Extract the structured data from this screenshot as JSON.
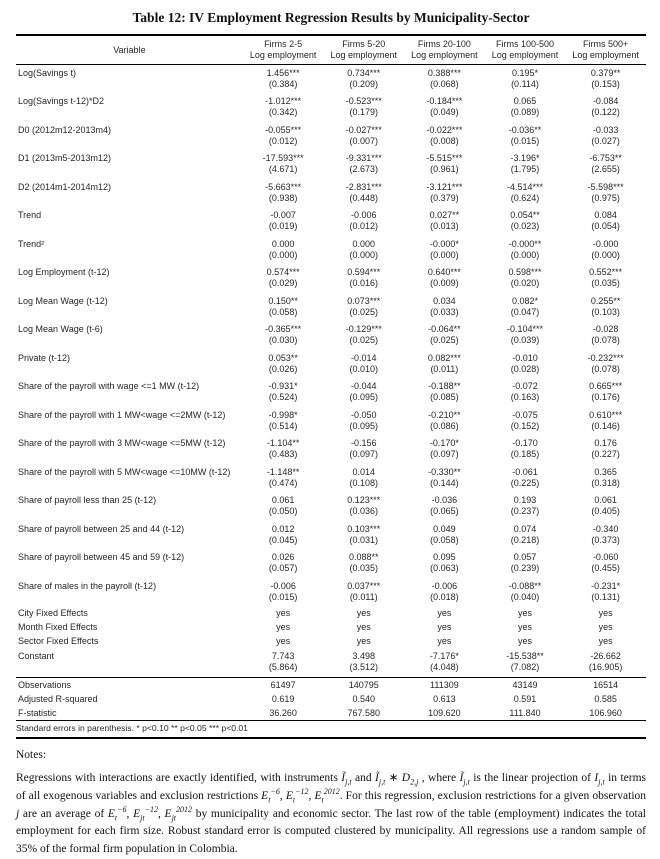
{
  "title": "Table 12: IV Employment Regression Results by Municipality-Sector",
  "table": {
    "variable_header": "Variable",
    "columns": [
      {
        "line1": "Firms 2-5",
        "line2": "Log employment"
      },
      {
        "line1": "Firms 5-20",
        "line2": "Log employment"
      },
      {
        "line1": "Firms 20-100",
        "line2": "Log employment"
      },
      {
        "line1": "Firms 100-500",
        "line2": "Log employment"
      },
      {
        "line1": "Firms 500+",
        "line2": "Log employment"
      }
    ],
    "body_rows": [
      {
        "variable": "Log(Savings t)",
        "values": [
          "1.456***",
          "0.734***",
          "0.388***",
          "0.195*",
          "0.379**"
        ],
        "ses": [
          "(0.384)",
          "(0.209)",
          "(0.068)",
          "(0.114)",
          "(0.153)"
        ]
      },
      {
        "variable": "Log(Savings t-12)*D2",
        "values": [
          "-1.012***",
          "-0.523***",
          "-0.184***",
          "0.065",
          "-0.084"
        ],
        "ses": [
          "(0.342)",
          "(0.179)",
          "(0.049)",
          "(0.089)",
          "(0.122)"
        ]
      },
      {
        "variable": "D0 (2012m12-2013m4)",
        "values": [
          "-0.055***",
          "-0.027***",
          "-0.022***",
          "-0.036**",
          "-0.033"
        ],
        "ses": [
          "(0.012)",
          "(0.007)",
          "(0.008)",
          "(0.015)",
          "(0.027)"
        ]
      },
      {
        "variable": "D1 (2013m5-2013m12)",
        "values": [
          "-17.593***",
          "-9.331***",
          "-5.515***",
          "-3.196*",
          "-6.753**"
        ],
        "ses": [
          "(4.671)",
          "(2.673)",
          "(0.961)",
          "(1.795)",
          "(2.655)"
        ]
      },
      {
        "variable": "D2 (2014m1-2014m12)",
        "values": [
          "-5.663***",
          "-2.831***",
          "-3.121***",
          "-4.514***",
          "-5.598***"
        ],
        "ses": [
          "(0.938)",
          "(0.448)",
          "(0.379)",
          "(0.624)",
          "(0.975)"
        ]
      },
      {
        "variable": "Trend",
        "values": [
          "-0.007",
          "-0.006",
          "0.027**",
          "0.054**",
          "0.084"
        ],
        "ses": [
          "(0.019)",
          "(0.012)",
          "(0.013)",
          "(0.023)",
          "(0.054)"
        ]
      },
      {
        "variable": "Trend²",
        "values": [
          "0.000",
          "0.000",
          "-0.000*",
          "-0.000**",
          "-0.000"
        ],
        "ses": [
          "(0.000)",
          "(0.000)",
          "(0.000)",
          "(0.000)",
          "(0.000)"
        ]
      },
      {
        "variable": "Log Employment (t-12)",
        "values": [
          "0.574***",
          "0.594***",
          "0.640***",
          "0.598***",
          "0.552***"
        ],
        "ses": [
          "(0.029)",
          "(0.016)",
          "(0.009)",
          "(0.020)",
          "(0.035)"
        ]
      },
      {
        "variable": "Log Mean Wage (t-12)",
        "values": [
          "0.150**",
          "0.073***",
          "0.034",
          "0.082*",
          "0.255**"
        ],
        "ses": [
          "(0.058)",
          "(0.025)",
          "(0.033)",
          "(0.047)",
          "(0.103)"
        ]
      },
      {
        "variable": "Log Mean Wage (t-6)",
        "values": [
          "-0.365***",
          "-0.129***",
          "-0.064**",
          "-0.104***",
          "-0.028"
        ],
        "ses": [
          "(0.030)",
          "(0.025)",
          "(0.025)",
          "(0.039)",
          "(0.078)"
        ]
      },
      {
        "variable": "Private (t-12)",
        "values": [
          "0.053**",
          "-0.014",
          "0.082***",
          "-0.010",
          "-0.232***"
        ],
        "ses": [
          "(0.026)",
          "(0.010)",
          "(0.011)",
          "(0.028)",
          "(0.078)"
        ]
      },
      {
        "variable": "Share of the payroll with wage <=1 MW (t-12)",
        "values": [
          "-0.931*",
          "-0.044",
          "-0.188**",
          "-0.072",
          "0.665***"
        ],
        "ses": [
          "(0.524)",
          "(0.095)",
          "(0.085)",
          "(0.163)",
          "(0.176)"
        ]
      },
      {
        "variable": "Share of the payroll with 1 MW<wage <=2MW (t-12)",
        "values": [
          "-0.998*",
          "-0.050",
          "-0.210**",
          "-0.075",
          "0.610***"
        ],
        "ses": [
          "(0.514)",
          "(0.095)",
          "(0.086)",
          "(0.152)",
          "(0.146)"
        ]
      },
      {
        "variable": "Share of the payroll with 3 MW<wage <=5MW (t-12)",
        "values": [
          "-1.104**",
          "-0.156",
          "-0.170*",
          "-0.170",
          "0.176"
        ],
        "ses": [
          "(0.483)",
          "(0.097)",
          "(0.097)",
          "(0.185)",
          "(0.227)"
        ]
      },
      {
        "variable": "Share of the payroll with 5 MW<wage <=10MW (t-12)",
        "values": [
          "-1.148**",
          "0.014",
          "-0.330**",
          "-0.061",
          "0.365"
        ],
        "ses": [
          "(0.474)",
          "(0.108)",
          "(0.144)",
          "(0.225)",
          "(0.318)"
        ]
      },
      {
        "variable": "Share of payroll less than 25 (t-12)",
        "values": [
          "0.061",
          "0.123***",
          "-0.036",
          "0.193",
          "0.061"
        ],
        "ses": [
          "(0.050)",
          "(0.036)",
          "(0.065)",
          "(0.237)",
          "(0.405)"
        ]
      },
      {
        "variable": "Share of payroll between 25 and 44 (t-12)",
        "values": [
          "0.012",
          "0.103***",
          "0.049",
          "0.074",
          "-0.340"
        ],
        "ses": [
          "(0.045)",
          "(0.031)",
          "(0.058)",
          "(0.218)",
          "(0.373)"
        ]
      },
      {
        "variable": "Share of payroll between 45 and 59 (t-12)",
        "values": [
          "0.026",
          "0.088**",
          "0.095",
          "0.057",
          "-0.060"
        ],
        "ses": [
          "(0.057)",
          "(0.035)",
          "(0.063)",
          "(0.239)",
          "(0.455)"
        ]
      },
      {
        "variable": "Share of males in the payroll (t-12)",
        "values": [
          "-0.006",
          "0.037***",
          "-0.006",
          "-0.088**",
          "-0.231*"
        ],
        "ses": [
          "(0.015)",
          "(0.011)",
          "(0.018)",
          "(0.040)",
          "(0.131)"
        ]
      },
      {
        "variable": "City Fixed Effects",
        "values": [
          "yes",
          "yes",
          "yes",
          "yes",
          "yes"
        ]
      },
      {
        "variable": "Month Fixed Effects",
        "values": [
          "yes",
          "yes",
          "yes",
          "yes",
          "yes"
        ]
      },
      {
        "variable": "Sector Fixed Effects",
        "values": [
          "yes",
          "yes",
          "yes",
          "yes",
          "yes"
        ]
      },
      {
        "variable": "Constant",
        "values": [
          "7.743",
          "3.498",
          "-7.176*",
          "-15.538**",
          "-26.662"
        ],
        "ses": [
          "(5.864)",
          "(3.512)",
          "(4.048)",
          "(7.082)",
          "(16.905)"
        ]
      }
    ],
    "stats_rows": [
      {
        "variable": "Observations",
        "values": [
          "61497",
          "140795",
          "111309",
          "43149",
          "16514"
        ]
      },
      {
        "variable": "Adjusted R-squared",
        "values": [
          "0.619",
          "0.540",
          "0.613",
          "0.591",
          "0.585"
        ]
      },
      {
        "variable": "F-statistic",
        "values": [
          "36.260",
          "767.580",
          "109.620",
          "111.840",
          "106.960"
        ]
      }
    ],
    "footnote": "Standard errors in parenthesis.   * p<0.10  ** p<0.05  *** p<0.01"
  },
  "notes": {
    "heading": "Notes:",
    "tokens": [
      {
        "s": "n",
        "v": "Regressions with interactions are exactly identified, with instruments "
      },
      {
        "s": "i",
        "v": "Ĩ"
      },
      {
        "s": "sub",
        "v": "j,t"
      },
      {
        "s": "n",
        "v": " and "
      },
      {
        "s": "i",
        "v": "Ĩ"
      },
      {
        "s": "sub",
        "v": "j,t"
      },
      {
        "s": "n",
        "v": " ∗ "
      },
      {
        "s": "i",
        "v": "D"
      },
      {
        "s": "sub",
        "v": "2,j"
      },
      {
        "s": "n",
        "v": " , where "
      },
      {
        "s": "i",
        "v": "Ĩ"
      },
      {
        "s": "sub",
        "v": "j,t"
      },
      {
        "s": "n",
        "v": " is the linear projection of "
      },
      {
        "s": "i",
        "v": "I"
      },
      {
        "s": "sub",
        "v": "j,t"
      },
      {
        "s": "n",
        "v": " in terms of all exogenous variables and exclusion restrictions "
      },
      {
        "s": "i",
        "v": "E"
      },
      {
        "s": "sub",
        "v": "t"
      },
      {
        "s": "sup",
        "v": "−6"
      },
      {
        "s": "n",
        "v": ", "
      },
      {
        "s": "i",
        "v": "E"
      },
      {
        "s": "sub",
        "v": "t"
      },
      {
        "s": "sup",
        "v": "−12"
      },
      {
        "s": "n",
        "v": ", "
      },
      {
        "s": "i",
        "v": "E"
      },
      {
        "s": "sub",
        "v": "t"
      },
      {
        "s": "sup",
        "v": "2012"
      },
      {
        "s": "n",
        "v": ". For this regression, exclusion restrictions for a given observation "
      },
      {
        "s": "i",
        "v": "j"
      },
      {
        "s": "n",
        "v": " are an average of "
      },
      {
        "s": "i",
        "v": "E"
      },
      {
        "s": "sub",
        "v": "t"
      },
      {
        "s": "sup",
        "v": "−6"
      },
      {
        "s": "n",
        "v": ", "
      },
      {
        "s": "i",
        "v": "E"
      },
      {
        "s": "sub",
        "v": "jt"
      },
      {
        "s": "sup",
        "v": "−12"
      },
      {
        "s": "n",
        "v": ", "
      },
      {
        "s": "i",
        "v": "E"
      },
      {
        "s": "sub",
        "v": "jt"
      },
      {
        "s": "sup",
        "v": "2012"
      },
      {
        "s": "n",
        "v": " by municipality and economic sector. The last row of the table (employment) indicates the total employment for each firm size. Robust standard error is computed clustered by municipality. All regressions use a random sample of 35% of the formal firm population in Colombia."
      }
    ]
  }
}
